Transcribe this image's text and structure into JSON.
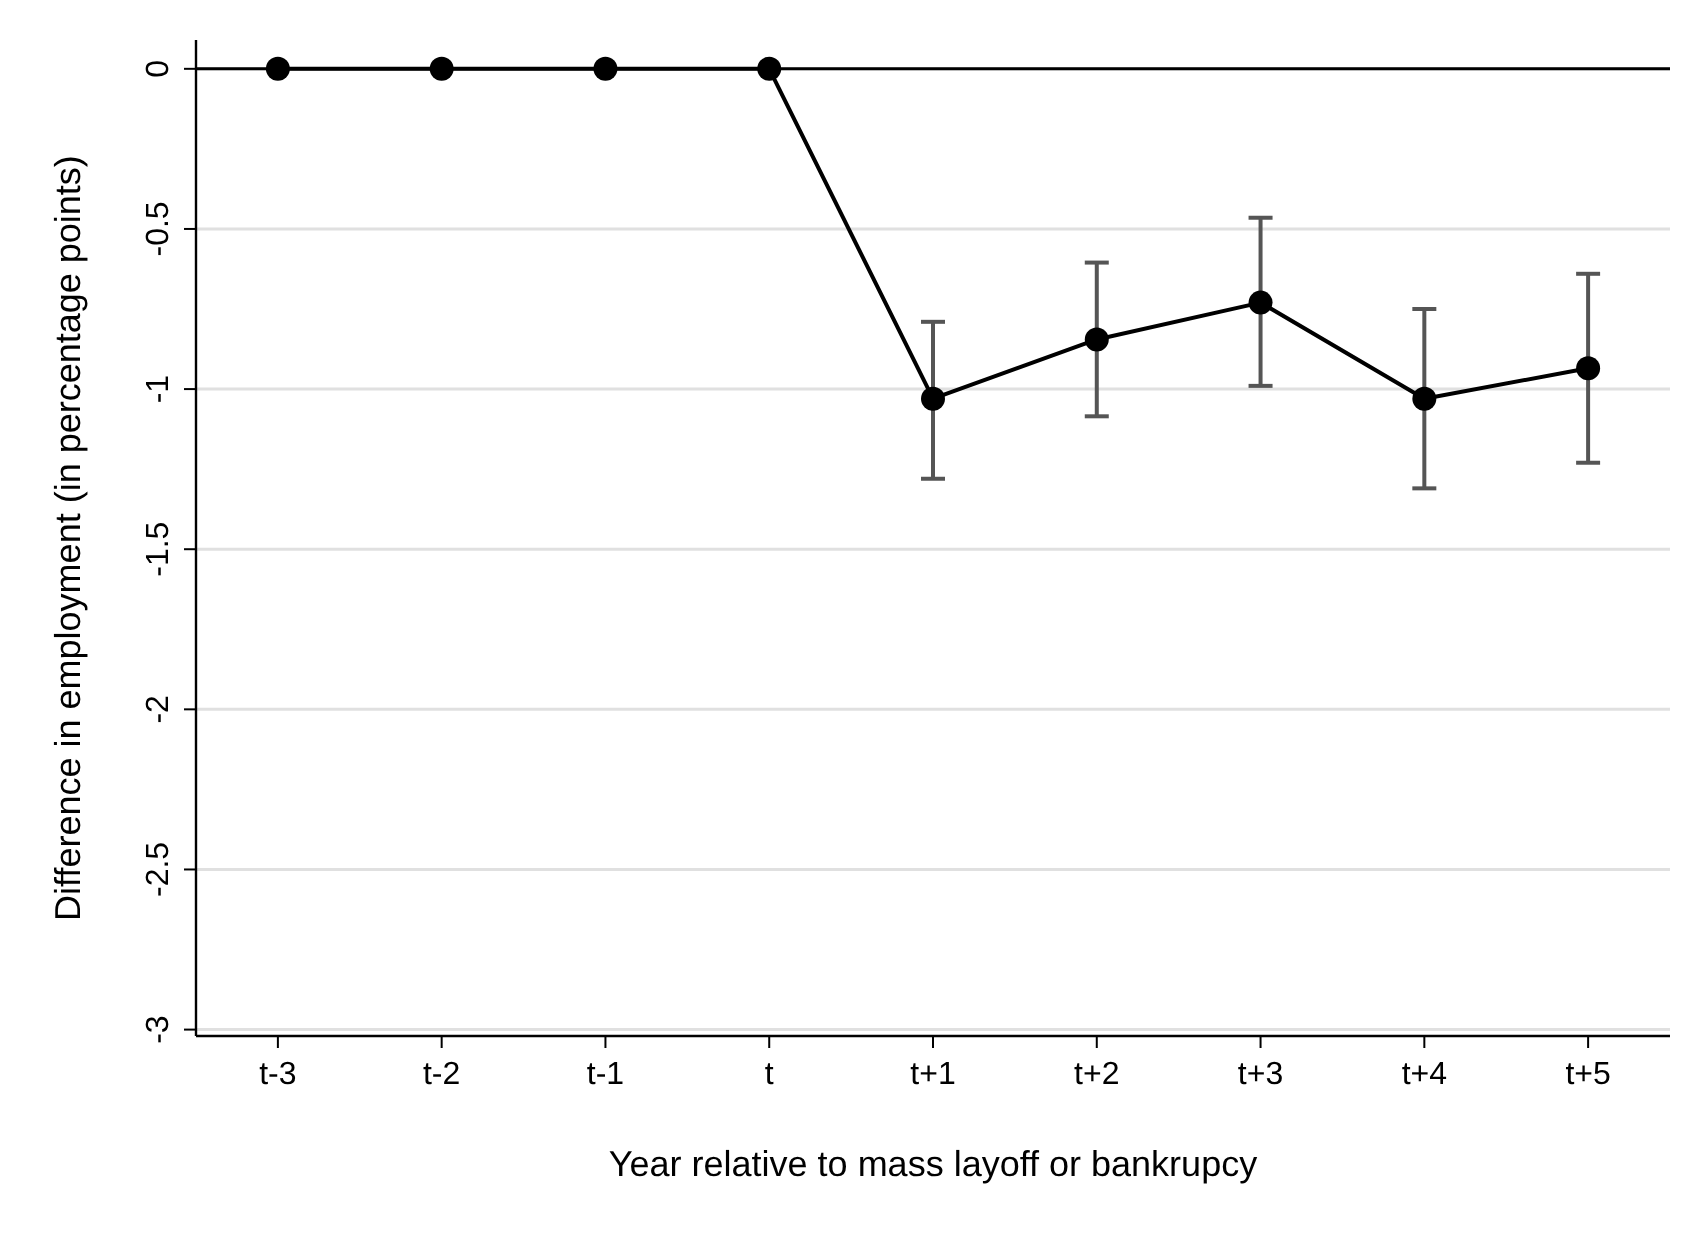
{
  "chart_data": {
    "type": "line",
    "xlabel": "Year relative to mass layoff or bankrupcy",
    "ylabel": "Difference in employment (in percentage points)",
    "categories": [
      "t-3",
      "t-2",
      "t-1",
      "t",
      "t+1",
      "t+2",
      "t+3",
      "t+4",
      "t+5"
    ],
    "series": [
      {
        "color": "#000000",
        "values": [
          0,
          0,
          0,
          0,
          -1.03,
          -0.845,
          -0.73,
          -1.03,
          -0.935
        ],
        "errors": [
          null,
          null,
          null,
          null,
          [
            -1.28,
            -0.79
          ],
          [
            -1.085,
            -0.605
          ],
          [
            -0.99,
            -0.465
          ],
          [
            -1.31,
            -0.75
          ],
          [
            -1.23,
            -0.64
          ]
        ]
      }
    ],
    "ylim": [
      -3.02,
      0.09
    ],
    "yticks": [
      0,
      -0.5,
      -1,
      -1.5,
      -2,
      -2.5,
      -3
    ],
    "grid": "y",
    "marker": "circle",
    "line_style": "solid",
    "ref_lines": [
      {
        "axis": "y",
        "value": 0,
        "color": "#000000"
      }
    ]
  }
}
